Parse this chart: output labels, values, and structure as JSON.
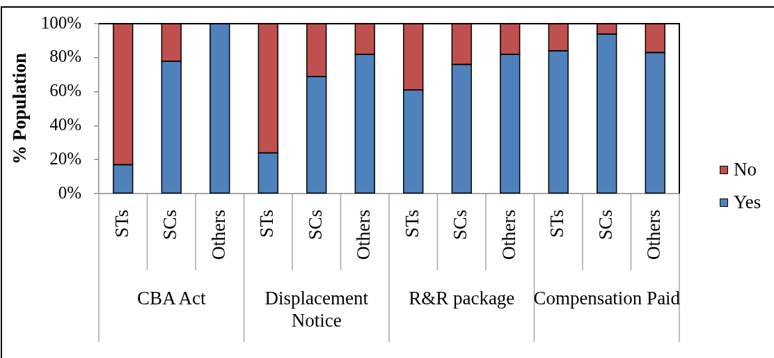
{
  "chart_data": {
    "type": "bar",
    "stacked": true,
    "ylabel": "% Population",
    "categories": [
      "STs",
      "SCs",
      "Others",
      "STs",
      "SCs",
      "Others",
      "STs",
      "SCs",
      "Others",
      "STs",
      "SCs",
      "Others"
    ],
    "series": [
      {
        "name": "Yes",
        "color": "#4f81bd",
        "values": [
          17,
          78,
          100,
          24,
          69,
          82,
          61,
          76,
          82,
          84,
          94,
          83
        ]
      },
      {
        "name": "No",
        "color": "#c0504d",
        "values": [
          83,
          22,
          0,
          76,
          31,
          18,
          39,
          24,
          18,
          16,
          6,
          17
        ]
      }
    ],
    "ylim": [
      0,
      100
    ],
    "yticks": [
      {
        "value": 0,
        "label": "0%"
      },
      {
        "value": 20,
        "label": "20%"
      },
      {
        "value": 40,
        "label": "40%"
      },
      {
        "value": 60,
        "label": "60%"
      },
      {
        "value": 80,
        "label": "80%"
      },
      {
        "value": 100,
        "label": "100%"
      }
    ],
    "grid": false,
    "legend": "right",
    "annotations": [
      "CBA Act",
      "Displacement Notice",
      "R&R package",
      "Compensation Paid"
    ]
  }
}
